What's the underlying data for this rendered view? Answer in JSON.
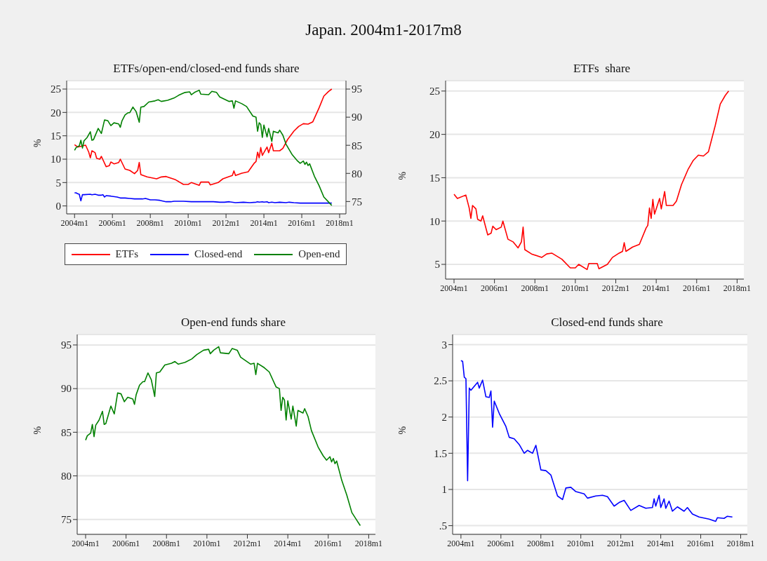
{
  "chart_data": [
    {
      "type": "other",
      "title": "Japan. 2004m1-2017m8"
    },
    {
      "type": "line",
      "title": "ETFs/open-end/closed-end funds share",
      "ylabel": "%",
      "legend": "bottom",
      "grid": "y",
      "xlim": [
        "2003-08",
        "2018-05"
      ],
      "xticks": [
        {
          "value": "2004-01",
          "label": "2004m1"
        },
        {
          "value": "2006-01",
          "label": "2006m1"
        },
        {
          "value": "2008-01",
          "label": "2008m1"
        },
        {
          "value": "2010-01",
          "label": "2010m1"
        },
        {
          "value": "2012-01",
          "label": "2012m1"
        },
        {
          "value": "2014-01",
          "label": "2014m1"
        },
        {
          "value": "2016-01",
          "label": "2016m1"
        },
        {
          "value": "2018-01",
          "label": "2018m1"
        }
      ],
      "ylim": [
        -1.7,
        26.8
      ],
      "yticks": [
        0,
        5,
        10,
        15,
        20,
        25
      ],
      "y2lim": [
        72.8,
        96.5
      ],
      "y2ticks": [
        75,
        80,
        85,
        90,
        95
      ],
      "series": [
        {
          "name": "ETFs",
          "color": "#ff0000",
          "x": [
            "2004-01",
            "2004-03",
            "2004-08",
            "2004-10",
            "2004-11",
            "2004-12",
            "2005-02",
            "2005-03",
            "2005-05",
            "2005-06",
            "2005-09",
            "2005-11",
            "2005-12",
            "2006-02",
            "2006-05",
            "2006-06",
            "2006-09",
            "2006-12",
            "2007-03",
            "2007-05",
            "2007-06",
            "2007-07",
            "2007-11",
            "2008-05",
            "2008-08",
            "2008-11",
            "2009-05",
            "2009-10",
            "2010-01",
            "2010-03",
            "2010-08",
            "2010-09",
            "2011-02",
            "2011-03",
            "2011-08",
            "2011-11",
            "2012-03",
            "2012-05",
            "2012-06",
            "2012-07",
            "2012-11",
            "2013-03",
            "2013-07",
            "2013-08",
            "2013-09",
            "2013-10",
            "2013-11",
            "2013-12",
            "2014-03",
            "2014-04",
            "2014-06",
            "2014-07",
            "2014-11",
            "2015-01",
            "2015-04",
            "2015-08",
            "2015-11",
            "2016-02",
            "2016-05",
            "2016-08",
            "2016-10",
            "2016-12",
            "2017-03",
            "2017-06",
            "2017-08"
          ],
          "values": [
            13.1,
            12.6,
            13.0,
            11.5,
            10.3,
            11.8,
            11.4,
            10.2,
            10.0,
            10.6,
            8.4,
            8.6,
            9.4,
            9.0,
            9.3,
            10.0,
            7.9,
            7.6,
            6.9,
            7.6,
            9.3,
            6.7,
            6.2,
            5.8,
            6.2,
            6.3,
            5.6,
            4.6,
            4.6,
            5.0,
            4.4,
            5.1,
            5.1,
            4.5,
            5.0,
            5.8,
            6.3,
            6.5,
            7.5,
            6.5,
            7.0,
            7.3,
            9.2,
            9.5,
            11.5,
            10.3,
            12.5,
            10.8,
            12.6,
            11.4,
            13.4,
            11.8,
            11.8,
            12.3,
            14.2,
            16.0,
            17.0,
            17.6,
            17.5,
            18.0,
            19.5,
            21.0,
            23.5,
            24.5,
            25.0
          ]
        },
        {
          "name": "Closed-end",
          "color": "#0000ff",
          "x": [
            "2004-01",
            "2004-02",
            "2004-03",
            "2004-04",
            "2004-05",
            "2004-06",
            "2004-07",
            "2004-11",
            "2004-12",
            "2005-02",
            "2005-04",
            "2005-06",
            "2005-07",
            "2005-08",
            "2005-09",
            "2005-12",
            "2006-04",
            "2006-06",
            "2006-09",
            "2006-12",
            "2007-03",
            "2007-05",
            "2007-08",
            "2007-10",
            "2008-01",
            "2008-04",
            "2008-07",
            "2008-11",
            "2009-02",
            "2009-04",
            "2009-07",
            "2009-10",
            "2010-03",
            "2010-05",
            "2010-10",
            "2011-02",
            "2011-05",
            "2011-09",
            "2011-12",
            "2012-03",
            "2012-07",
            "2012-12",
            "2013-04",
            "2013-08",
            "2013-09",
            "2013-10",
            "2013-12",
            "2014-01",
            "2014-03",
            "2014-04",
            "2014-06",
            "2014-08",
            "2014-11",
            "2015-03",
            "2015-05",
            "2015-08",
            "2015-12",
            "2016-06",
            "2016-10",
            "2016-11",
            "2017-03",
            "2017-05",
            "2017-08"
          ],
          "values": [
            2.8,
            2.8,
            2.6,
            2.5,
            1.1,
            2.4,
            2.4,
            2.5,
            2.4,
            2.5,
            2.3,
            2.3,
            2.4,
            1.9,
            2.2,
            2.1,
            1.9,
            1.7,
            1.7,
            1.6,
            1.5,
            1.5,
            1.5,
            1.6,
            1.3,
            1.3,
            1.2,
            0.9,
            0.9,
            1.0,
            1.0,
            1.0,
            0.9,
            0.9,
            0.9,
            0.9,
            0.9,
            0.8,
            0.8,
            0.9,
            0.7,
            0.8,
            0.7,
            0.8,
            0.9,
            0.8,
            0.9,
            0.8,
            0.9,
            0.7,
            0.8,
            0.7,
            0.8,
            0.7,
            0.8,
            0.7,
            0.6,
            0.6,
            0.6,
            0.6,
            0.6,
            0.6,
            0.6
          ]
        },
        {
          "name": "Open-end",
          "color": "#008000",
          "axis": "y2",
          "x": [
            "2004-01",
            "2004-02",
            "2004-04",
            "2004-05",
            "2004-06",
            "2004-07",
            "2004-09",
            "2004-11",
            "2004-12",
            "2005-01",
            "2005-04",
            "2005-06",
            "2005-08",
            "2005-10",
            "2005-12",
            "2006-02",
            "2006-05",
            "2006-06",
            "2006-07",
            "2006-09",
            "2006-11",
            "2006-12",
            "2007-02",
            "2007-04",
            "2007-06",
            "2007-07",
            "2007-09",
            "2007-12",
            "2008-04",
            "2008-06",
            "2008-08",
            "2008-12",
            "2009-04",
            "2009-07",
            "2009-11",
            "2010-02",
            "2010-03",
            "2010-05",
            "2010-08",
            "2010-09",
            "2011-02",
            "2011-04",
            "2011-07",
            "2011-09",
            "2011-12",
            "2012-03",
            "2012-05",
            "2012-06",
            "2012-07",
            "2012-11",
            "2013-02",
            "2013-06",
            "2013-08",
            "2013-09",
            "2013-10",
            "2013-11",
            "2013-12",
            "2014-01",
            "2014-03",
            "2014-04",
            "2014-06",
            "2014-07",
            "2014-10",
            "2014-11",
            "2015-01",
            "2015-03",
            "2015-07",
            "2015-10",
            "2015-12",
            "2016-02",
            "2016-03",
            "2016-04",
            "2016-05",
            "2016-06",
            "2016-09",
            "2016-12",
            "2017-03",
            "2017-06",
            "2017-08"
          ],
          "values": [
            84.1,
            84.6,
            84.9,
            85.9,
            84.5,
            85.8,
            86.4,
            87.4,
            85.9,
            86.0,
            88.0,
            87.1,
            89.5,
            89.4,
            88.5,
            89.0,
            88.8,
            88.2,
            89.3,
            90.4,
            90.8,
            90.8,
            91.8,
            91.0,
            89.1,
            91.8,
            91.9,
            92.7,
            92.9,
            93.1,
            92.8,
            93.0,
            93.4,
            93.9,
            94.4,
            94.5,
            94.0,
            94.4,
            94.8,
            94.1,
            94.0,
            94.6,
            94.4,
            93.6,
            93.2,
            92.8,
            92.9,
            91.6,
            92.9,
            92.4,
            91.9,
            90.2,
            90.0,
            87.5,
            89.0,
            88.7,
            86.4,
            88.6,
            86.5,
            88.0,
            85.7,
            87.5,
            87.2,
            87.7,
            86.8,
            85.2,
            83.3,
            82.3,
            81.8,
            82.2,
            81.6,
            82.0,
            81.4,
            81.7,
            79.5,
            77.8,
            75.8,
            74.9,
            74.3
          ]
        }
      ]
    },
    {
      "type": "line",
      "title": "ETFs  share",
      "ylabel": "%",
      "grid": "y",
      "xlim": [
        "2003-08",
        "2018-05"
      ],
      "xticks": [
        {
          "value": "2004-01",
          "label": "2004m1"
        },
        {
          "value": "2006-01",
          "label": "2006m1"
        },
        {
          "value": "2008-01",
          "label": "2008m1"
        },
        {
          "value": "2010-01",
          "label": "2010m1"
        },
        {
          "value": "2012-01",
          "label": "2012m1"
        },
        {
          "value": "2014-01",
          "label": "2014m1"
        },
        {
          "value": "2016-01",
          "label": "2016m1"
        },
        {
          "value": "2018-01",
          "label": "2018m1"
        }
      ],
      "ylim": [
        3.3,
        26.2
      ],
      "yticks": [
        5,
        10,
        15,
        20,
        25
      ],
      "series": [
        {
          "color": "#ff0000",
          "x": [
            "2004-01",
            "2004-03",
            "2004-08",
            "2004-10",
            "2004-11",
            "2004-12",
            "2005-02",
            "2005-03",
            "2005-05",
            "2005-06",
            "2005-09",
            "2005-11",
            "2005-12",
            "2006-02",
            "2006-05",
            "2006-06",
            "2006-09",
            "2006-12",
            "2007-03",
            "2007-05",
            "2007-06",
            "2007-07",
            "2007-11",
            "2008-05",
            "2008-08",
            "2008-11",
            "2009-05",
            "2009-10",
            "2010-01",
            "2010-03",
            "2010-08",
            "2010-09",
            "2011-02",
            "2011-03",
            "2011-08",
            "2011-11",
            "2012-03",
            "2012-05",
            "2012-06",
            "2012-07",
            "2012-11",
            "2013-03",
            "2013-07",
            "2013-08",
            "2013-09",
            "2013-10",
            "2013-11",
            "2013-12",
            "2014-03",
            "2014-04",
            "2014-06",
            "2014-07",
            "2014-11",
            "2015-01",
            "2015-04",
            "2015-08",
            "2015-11",
            "2016-02",
            "2016-05",
            "2016-08",
            "2016-10",
            "2016-12",
            "2017-03",
            "2017-06",
            "2017-08"
          ],
          "values": [
            13.1,
            12.6,
            13.0,
            11.5,
            10.3,
            11.8,
            11.4,
            10.2,
            10.0,
            10.6,
            8.4,
            8.6,
            9.4,
            9.0,
            9.3,
            10.0,
            7.9,
            7.6,
            6.9,
            7.6,
            9.3,
            6.7,
            6.2,
            5.8,
            6.2,
            6.3,
            5.6,
            4.6,
            4.6,
            5.0,
            4.4,
            5.1,
            5.1,
            4.5,
            5.0,
            5.8,
            6.3,
            6.5,
            7.5,
            6.5,
            7.0,
            7.3,
            9.2,
            9.5,
            11.5,
            10.3,
            12.5,
            10.8,
            12.6,
            11.4,
            13.4,
            11.8,
            11.8,
            12.3,
            14.2,
            16.0,
            17.0,
            17.6,
            17.5,
            18.0,
            19.5,
            21.0,
            23.5,
            24.5,
            25.0
          ]
        }
      ]
    },
    {
      "type": "line",
      "title": "Open-end funds share",
      "ylabel": "%",
      "grid": "y",
      "xlim": [
        "2003-08",
        "2018-05"
      ],
      "xticks": [
        {
          "value": "2004-01",
          "label": "2004m1"
        },
        {
          "value": "2006-01",
          "label": "2006m1"
        },
        {
          "value": "2008-01",
          "label": "2008m1"
        },
        {
          "value": "2010-01",
          "label": "2010m1"
        },
        {
          "value": "2012-01",
          "label": "2012m1"
        },
        {
          "value": "2014-01",
          "label": "2014m1"
        },
        {
          "value": "2016-01",
          "label": "2016m1"
        },
        {
          "value": "2018-01",
          "label": "2018m1"
        }
      ],
      "ylim": [
        73.3,
        96.2
      ],
      "yticks": [
        75,
        80,
        85,
        90,
        95
      ],
      "series": [
        {
          "color": "#008000",
          "x": [
            "2004-01",
            "2004-02",
            "2004-04",
            "2004-05",
            "2004-06",
            "2004-07",
            "2004-09",
            "2004-11",
            "2004-12",
            "2005-01",
            "2005-04",
            "2005-06",
            "2005-08",
            "2005-10",
            "2005-12",
            "2006-02",
            "2006-05",
            "2006-06",
            "2006-07",
            "2006-09",
            "2006-11",
            "2006-12",
            "2007-02",
            "2007-04",
            "2007-06",
            "2007-07",
            "2007-09",
            "2007-12",
            "2008-04",
            "2008-06",
            "2008-08",
            "2008-12",
            "2009-04",
            "2009-07",
            "2009-11",
            "2010-02",
            "2010-03",
            "2010-05",
            "2010-08",
            "2010-09",
            "2011-02",
            "2011-04",
            "2011-07",
            "2011-09",
            "2011-12",
            "2012-03",
            "2012-05",
            "2012-06",
            "2012-07",
            "2012-11",
            "2013-02",
            "2013-06",
            "2013-08",
            "2013-09",
            "2013-10",
            "2013-11",
            "2013-12",
            "2014-01",
            "2014-03",
            "2014-04",
            "2014-06",
            "2014-07",
            "2014-10",
            "2014-11",
            "2015-01",
            "2015-03",
            "2015-07",
            "2015-10",
            "2015-12",
            "2016-02",
            "2016-03",
            "2016-04",
            "2016-05",
            "2016-06",
            "2016-09",
            "2016-12",
            "2017-03",
            "2017-06",
            "2017-08"
          ],
          "values": [
            84.1,
            84.6,
            84.9,
            85.9,
            84.5,
            85.8,
            86.4,
            87.4,
            85.9,
            86.0,
            88.0,
            87.1,
            89.5,
            89.4,
            88.5,
            89.0,
            88.8,
            88.2,
            89.3,
            90.4,
            90.8,
            90.8,
            91.8,
            91.0,
            89.1,
            91.8,
            91.9,
            92.7,
            92.9,
            93.1,
            92.8,
            93.0,
            93.4,
            93.9,
            94.4,
            94.5,
            94.0,
            94.4,
            94.8,
            94.1,
            94.0,
            94.6,
            94.4,
            93.6,
            93.2,
            92.8,
            92.9,
            91.6,
            92.9,
            92.4,
            91.9,
            90.2,
            90.0,
            87.5,
            89.0,
            88.7,
            86.4,
            88.6,
            86.5,
            88.0,
            85.7,
            87.5,
            87.2,
            87.7,
            86.8,
            85.2,
            83.3,
            82.3,
            81.8,
            82.2,
            81.6,
            82.0,
            81.4,
            81.7,
            79.5,
            77.8,
            75.8,
            74.9,
            74.3
          ]
        }
      ]
    },
    {
      "type": "line",
      "title": "Closed-end funds share",
      "ylabel": "%",
      "grid": "y",
      "xlim": [
        "2003-08",
        "2018-05"
      ],
      "xticks": [
        {
          "value": "2004-01",
          "label": "2004m1"
        },
        {
          "value": "2006-01",
          "label": "2006m1"
        },
        {
          "value": "2008-01",
          "label": "2008m1"
        },
        {
          "value": "2010-01",
          "label": "2010m1"
        },
        {
          "value": "2012-01",
          "label": "2012m1"
        },
        {
          "value": "2014-01",
          "label": "2014m1"
        },
        {
          "value": "2016-01",
          "label": "2016m1"
        },
        {
          "value": "2018-01",
          "label": "2018m1"
        }
      ],
      "ylim": [
        0.38,
        3.14
      ],
      "yticks": [
        {
          "value": 0.5,
          "label": ".5"
        },
        1,
        1.5,
        2,
        2.5,
        3
      ],
      "series": [
        {
          "color": "#0000ff",
          "x": [
            "2004-01",
            "2004-02",
            "2004-03",
            "2004-04",
            "2004-05",
            "2004-06",
            "2004-07",
            "2004-11",
            "2004-12",
            "2005-02",
            "2005-04",
            "2005-06",
            "2005-07",
            "2005-08",
            "2005-09",
            "2005-12",
            "2006-04",
            "2006-06",
            "2006-09",
            "2006-12",
            "2007-03",
            "2007-05",
            "2007-08",
            "2007-10",
            "2008-01",
            "2008-04",
            "2008-07",
            "2008-11",
            "2009-02",
            "2009-04",
            "2009-07",
            "2009-10",
            "2010-03",
            "2010-05",
            "2010-10",
            "2011-02",
            "2011-05",
            "2011-09",
            "2011-12",
            "2012-03",
            "2012-07",
            "2012-12",
            "2013-04",
            "2013-08",
            "2013-09",
            "2013-10",
            "2013-12",
            "2014-01",
            "2014-03",
            "2014-04",
            "2014-06",
            "2014-08",
            "2014-11",
            "2015-03",
            "2015-05",
            "2015-08",
            "2015-12",
            "2016-06",
            "2016-10",
            "2016-11",
            "2017-03",
            "2017-05",
            "2017-08"
          ],
          "values": [
            2.78,
            2.77,
            2.55,
            2.53,
            1.12,
            2.4,
            2.37,
            2.48,
            2.4,
            2.51,
            2.28,
            2.27,
            2.36,
            1.86,
            2.22,
            2.05,
            1.87,
            1.72,
            1.7,
            1.62,
            1.5,
            1.54,
            1.5,
            1.61,
            1.27,
            1.26,
            1.2,
            0.91,
            0.86,
            1.02,
            1.03,
            0.97,
            0.94,
            0.88,
            0.91,
            0.92,
            0.9,
            0.77,
            0.82,
            0.85,
            0.71,
            0.78,
            0.74,
            0.75,
            0.87,
            0.77,
            0.92,
            0.75,
            0.87,
            0.74,
            0.84,
            0.7,
            0.76,
            0.7,
            0.75,
            0.66,
            0.62,
            0.59,
            0.56,
            0.61,
            0.6,
            0.63,
            0.62
          ]
        }
      ]
    }
  ]
}
